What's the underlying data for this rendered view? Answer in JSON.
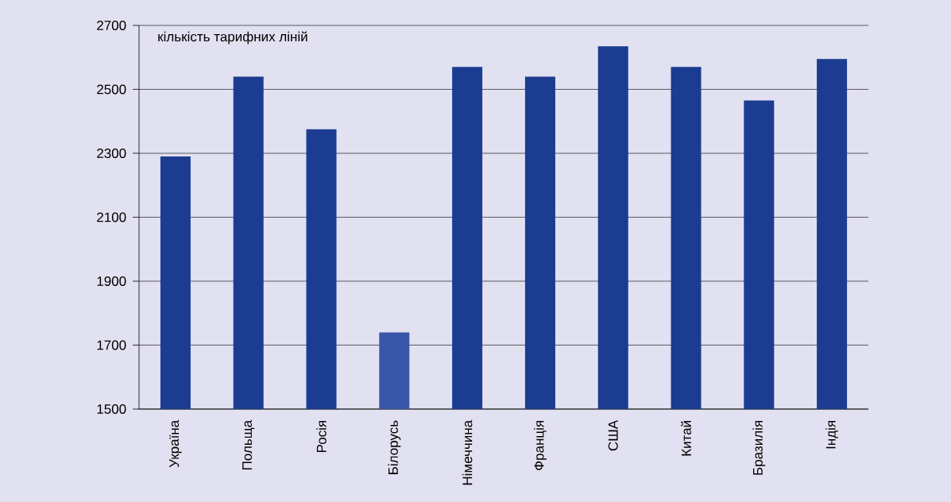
{
  "chart_data": {
    "type": "bar",
    "ylabel": "кількість тарифних ліній",
    "categories": [
      "Україна",
      "Польща",
      "Росія",
      "Білорусь",
      "Німеччина",
      "Франція",
      "США",
      "Китай",
      "Бразилія",
      "Індія"
    ],
    "values": [
      2290,
      2540,
      2375,
      1740,
      2570,
      2540,
      2635,
      2570,
      2465,
      2595
    ],
    "colors": [
      "#1b3c91",
      "#1b3c91",
      "#1b3c91",
      "#3a56a8",
      "#1b3c91",
      "#1b3c91",
      "#1b3c91",
      "#1b3c91",
      "#1b3c91",
      "#1b3c91"
    ],
    "ylim": [
      1500,
      2700
    ],
    "yticks": [
      1500,
      1700,
      1900,
      2100,
      2300,
      2500,
      2700
    ],
    "grid": "y"
  }
}
